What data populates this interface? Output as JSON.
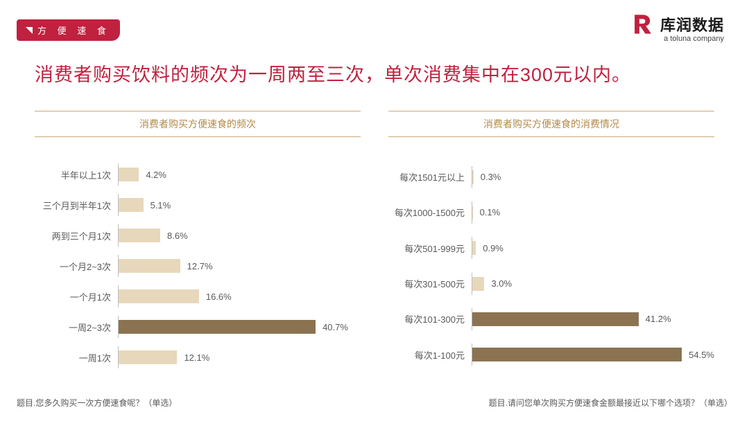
{
  "tag_label": "方 便 速 食",
  "logo": {
    "name": "库润数据",
    "sub": "a toluna company"
  },
  "headline": "消费者购买饮料的频次为一周两至三次，单次消费集中在300元以内。",
  "chart_left": {
    "type": "bar-horizontal",
    "title": "消费者购买方便速食的频次",
    "xmax": 50,
    "bar_color_default": "#e7d7bb",
    "bar_color_highlight": "#8b7352",
    "title_color": "#b38a4a",
    "rule_color": "#c7a97a",
    "label_color": "#595959",
    "rows": [
      {
        "label": "半年以上1次",
        "value": 4.2,
        "display": "4.2%",
        "highlight": false
      },
      {
        "label": "三个月到半年1次",
        "value": 5.1,
        "display": "5.1%",
        "highlight": false
      },
      {
        "label": "两到三个月1次",
        "value": 8.6,
        "display": "8.6%",
        "highlight": false
      },
      {
        "label": "一个月2~3次",
        "value": 12.7,
        "display": "12.7%",
        "highlight": false
      },
      {
        "label": "一个月1次",
        "value": 16.6,
        "display": "16.6%",
        "highlight": false
      },
      {
        "label": "一周2~3次",
        "value": 40.7,
        "display": "40.7%",
        "highlight": true
      },
      {
        "label": "一周1次",
        "value": 12.1,
        "display": "12.1%",
        "highlight": false
      }
    ]
  },
  "chart_right": {
    "type": "bar-horizontal",
    "title": "消费者购买方便速食的消费情况",
    "xmax": 60,
    "bar_color_default": "#e7d7bb",
    "bar_color_highlight": "#8b7352",
    "title_color": "#b38a4a",
    "rule_color": "#c7a97a",
    "label_color": "#595959",
    "rows": [
      {
        "label": "每次1501元以上",
        "value": 0.3,
        "display": "0.3%",
        "highlight": false
      },
      {
        "label": "每次1000-1500元",
        "value": 0.1,
        "display": "0.1%",
        "highlight": false
      },
      {
        "label": "每次501-999元",
        "value": 0.9,
        "display": "0.9%",
        "highlight": false
      },
      {
        "label": "每次301-500元",
        "value": 3.0,
        "display": "3.0%",
        "highlight": false
      },
      {
        "label": "每次101-300元",
        "value": 41.2,
        "display": "41.2%",
        "highlight": true
      },
      {
        "label": "每次1-100元",
        "value": 54.5,
        "display": "54.5%",
        "highlight": true
      }
    ]
  },
  "footer_left": "题目.您多久购买一次方便速食呢？（单选）",
  "footer_right": "题目.请问您单次购买方便速食金额最接近以下哪个选项？（单选）"
}
